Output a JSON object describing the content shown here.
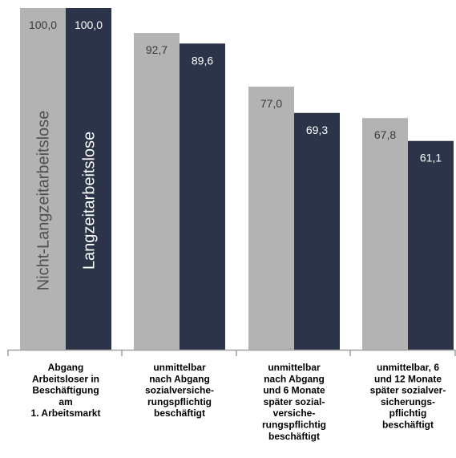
{
  "chart_data": {
    "type": "bar",
    "categories": [
      [
        "Abgang",
        "Arbeitsloser in",
        "Beschäftigung",
        "am",
        "1. Arbeitsmarkt"
      ],
      [
        "unmittelbar",
        "nach Abgang",
        "sozialversiche-",
        "rungspflichtig",
        "beschäftigt"
      ],
      [
        "unmittelbar",
        "nach Abgang",
        "und 6 Monate",
        "später sozial-",
        "versiche-",
        "rungspflichtig",
        "beschäftigt"
      ],
      [
        "unmittelbar, 6",
        "und 12 Monate",
        "später sozialver-",
        "sicherungs-",
        "pflichtig",
        "beschäftigt"
      ]
    ],
    "series": [
      {
        "name": "Nicht-Langzeitarbeitslose",
        "values": [
          100.0,
          92.7,
          77.0,
          67.8
        ],
        "labels": [
          "100,0",
          "92,7",
          "77,0",
          "67,8"
        ]
      },
      {
        "name": "Langzeitarbeitslose",
        "values": [
          100.0,
          89.6,
          69.3,
          61.1
        ],
        "labels": [
          "100,0",
          "89,6",
          "69,3",
          "61,1"
        ]
      }
    ],
    "ylim": [
      0,
      100
    ],
    "grid": false,
    "legend": "inside-first-bars-vertical"
  },
  "colors": {
    "series_0": "#b3b3b3",
    "series_1": "#2c3449",
    "label_on_light": "#3a3a3a",
    "label_on_dark": "#ffffff",
    "axis": "#a0a0a0"
  }
}
